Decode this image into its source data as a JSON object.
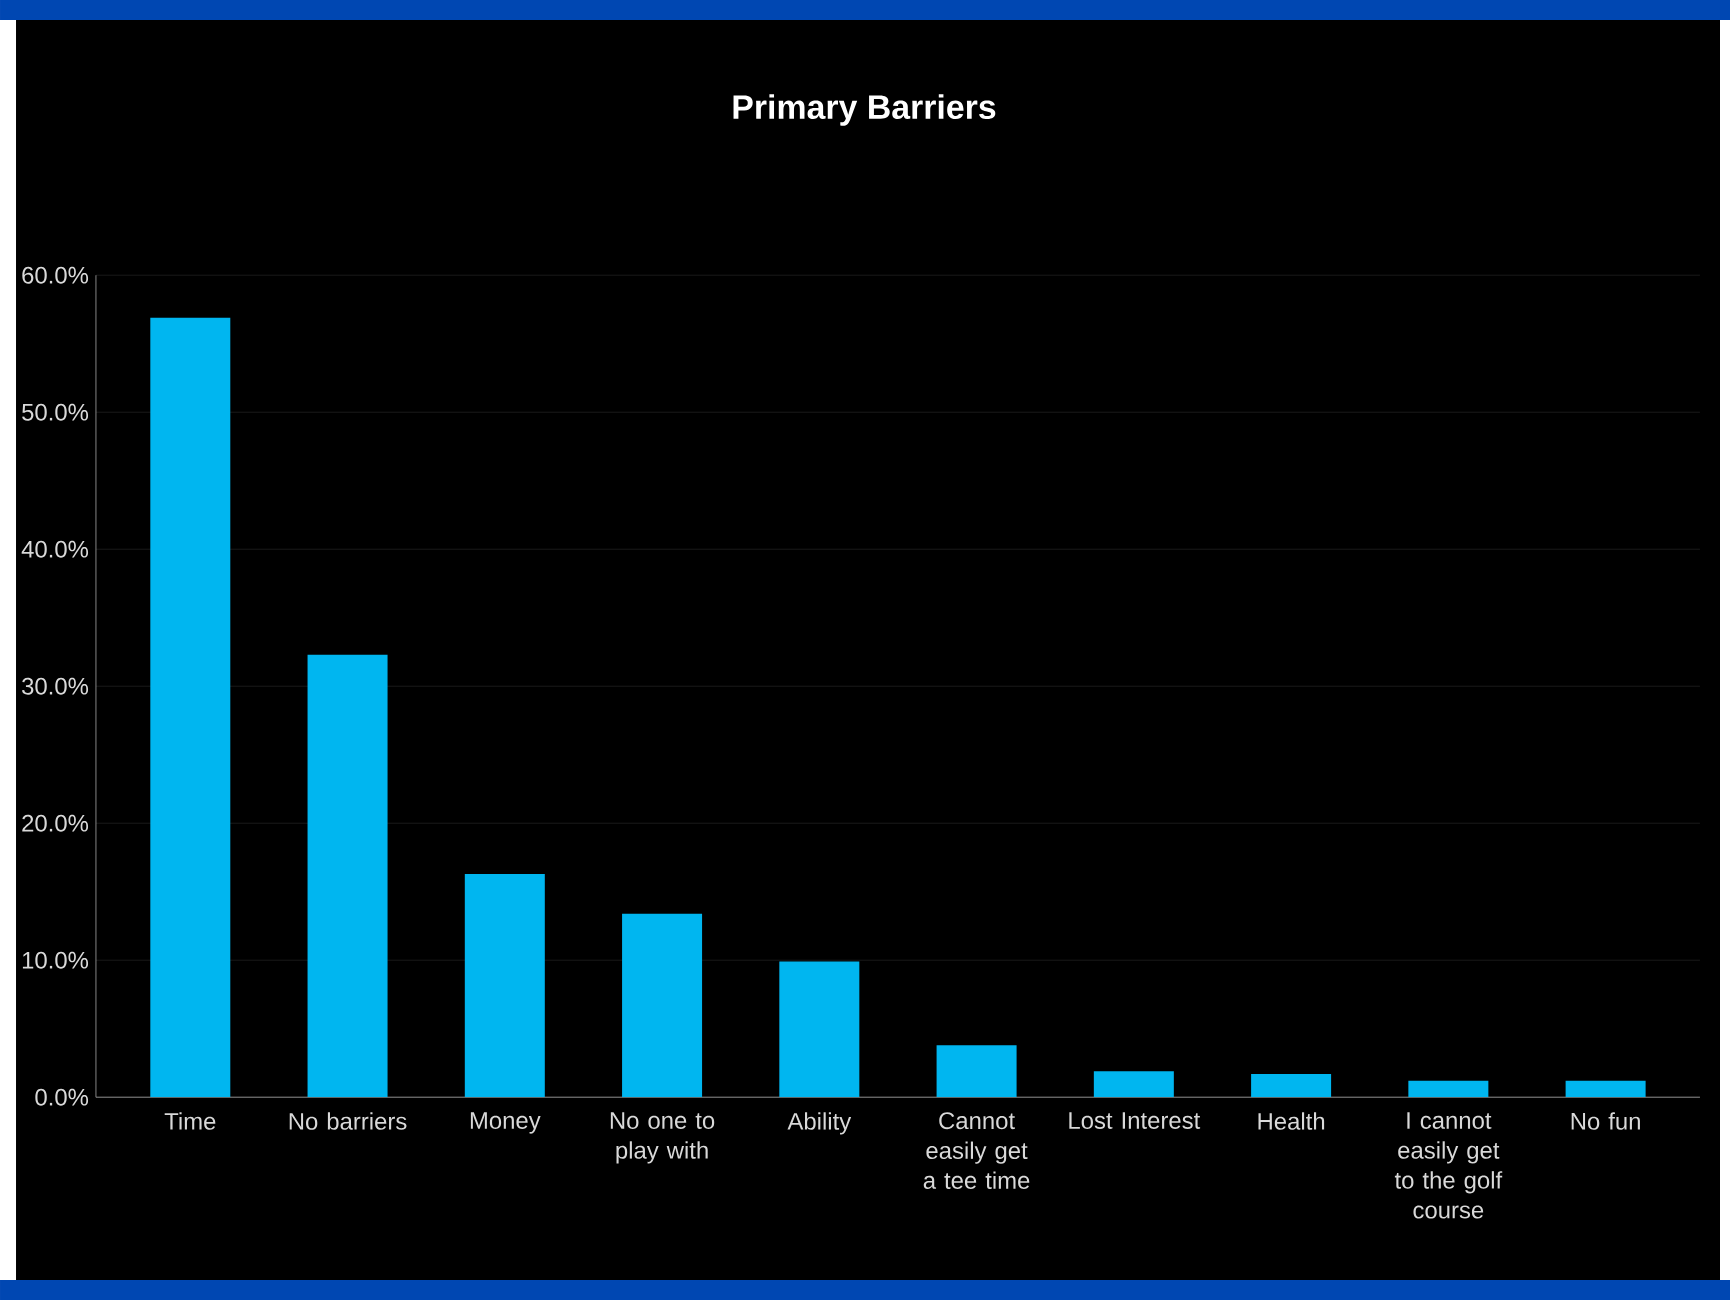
{
  "chart_data": {
    "type": "bar",
    "title": "Primary Barriers",
    "categories": [
      "Time",
      "No barriers",
      "Money",
      "No one to play with",
      "Ability",
      "Cannot easily get a tee time",
      "Lost Interest",
      "Health",
      "I cannot easily get to the golf course",
      "No fun"
    ],
    "values": [
      56.9,
      32.3,
      16.3,
      13.4,
      9.9,
      3.8,
      1.9,
      1.7,
      1.2,
      1.2
    ],
    "color": "#00b6f0",
    "ylim": [
      0,
      60
    ],
    "yticks": [
      {
        "value": 0,
        "label": "0.0%"
      },
      {
        "value": 10,
        "label": "10.0%"
      },
      {
        "value": 20,
        "label": "20.0%"
      },
      {
        "value": 30,
        "label": "30.0%"
      },
      {
        "value": 40,
        "label": "40.0%"
      },
      {
        "value": 50,
        "label": "50.0%"
      },
      {
        "value": 60,
        "label": "60.0%"
      }
    ],
    "grid": "y"
  }
}
